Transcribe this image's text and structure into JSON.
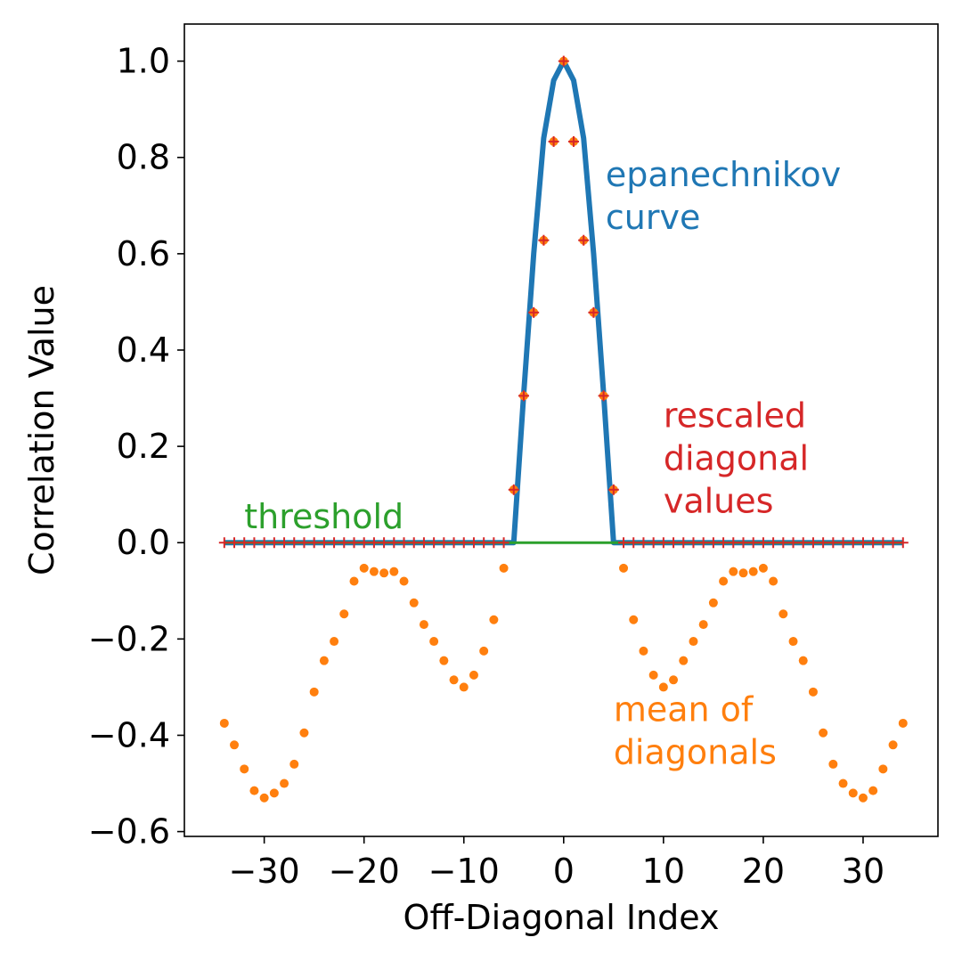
{
  "chart_data": {
    "type": "line",
    "xlabel": "Off-Diagonal Index",
    "ylabel": "Correlation Value",
    "xlim": [
      -38,
      37.5
    ],
    "ylim": [
      -0.61,
      1.077
    ],
    "xticks": [
      -30,
      -20,
      -10,
      0,
      10,
      20,
      30
    ],
    "xtick_labels": [
      "−30",
      "−20",
      "−10",
      "0",
      "10",
      "20",
      "30"
    ],
    "yticks": [
      -0.6,
      -0.4,
      -0.2,
      0.0,
      0.2,
      0.4,
      0.6,
      0.8,
      1.0
    ],
    "ytick_labels": [
      "−0.6",
      "−0.4",
      "−0.2",
      "0.0",
      "0.2",
      "0.4",
      "0.6",
      "0.8",
      "1.0"
    ],
    "grid": false,
    "legend": "none",
    "annotations": [
      {
        "lines": [
          "epanechnikov",
          "curve"
        ],
        "color": "#1f77b4",
        "x": 4.2,
        "y": 0.74
      },
      {
        "lines": [
          "rescaled",
          "diagonal",
          "values"
        ],
        "color": "#d62728",
        "x": 10.0,
        "y": 0.24
      },
      {
        "lines": [
          "threshold"
        ],
        "color": "#2ca02c",
        "x": -32.0,
        "y": 0.03
      },
      {
        "lines": [
          "mean of",
          "diagonals"
        ],
        "color": "#ff7f0e",
        "x": 5.0,
        "y": -0.37
      }
    ],
    "series": [
      {
        "style": "line",
        "color": "#1f77b4",
        "x": [
          -34,
          -33,
          -32,
          -31,
          -30,
          -29,
          -28,
          -27,
          -26,
          -25,
          -24,
          -23,
          -22,
          -21,
          -20,
          -19,
          -18,
          -17,
          -16,
          -15,
          -14,
          -13,
          -12,
          -11,
          -10,
          -9,
          -8,
          -7,
          -6,
          -5,
          -4,
          -3,
          -2,
          -1,
          0,
          1,
          2,
          3,
          4,
          5,
          6,
          7,
          8,
          9,
          10,
          11,
          12,
          13,
          14,
          15,
          16,
          17,
          18,
          19,
          20,
          21,
          22,
          23,
          24,
          25,
          26,
          27,
          28,
          29,
          30,
          31,
          32,
          33,
          34
        ],
        "y": [
          0,
          0,
          0,
          0,
          0,
          0,
          0,
          0,
          0,
          0,
          0,
          0,
          0,
          0,
          0,
          0,
          0,
          0,
          0,
          0,
          0,
          0,
          0,
          0,
          0,
          0,
          0,
          0,
          0,
          0,
          0.31,
          0.6,
          0.84,
          0.96,
          1.0,
          0.96,
          0.84,
          0.6,
          0.31,
          0,
          0,
          0,
          0,
          0,
          0,
          0,
          0,
          0,
          0,
          0,
          0,
          0,
          0,
          0,
          0,
          0,
          0,
          0,
          0,
          0,
          0,
          0,
          0,
          0,
          0,
          0,
          0,
          0,
          0
        ]
      },
      {
        "style": "line",
        "color": "#2ca02c",
        "x": [
          -34,
          34
        ],
        "y": [
          0,
          0
        ]
      },
      {
        "style": "dot",
        "color": "#ff7f0e",
        "x": [
          -34,
          -33,
          -32,
          -31,
          -30,
          -29,
          -28,
          -27,
          -26,
          -25,
          -24,
          -23,
          -22,
          -21,
          -20,
          -19,
          -18,
          -17,
          -16,
          -15,
          -14,
          -13,
          -12,
          -11,
          -10,
          -9,
          -8,
          -7,
          -6,
          -5,
          -4,
          -3,
          -2,
          -1,
          0,
          1,
          2,
          3,
          4,
          5,
          6,
          7,
          8,
          9,
          10,
          11,
          12,
          13,
          14,
          15,
          16,
          17,
          18,
          19,
          20,
          21,
          22,
          23,
          24,
          25,
          26,
          27,
          28,
          29,
          30,
          31,
          32,
          33,
          34
        ],
        "y": [
          -0.375,
          -0.42,
          -0.47,
          -0.515,
          -0.53,
          -0.52,
          -0.5,
          -0.46,
          -0.395,
          -0.31,
          -0.245,
          -0.205,
          -0.148,
          -0.08,
          -0.053,
          -0.06,
          -0.063,
          -0.06,
          -0.08,
          -0.125,
          -0.17,
          -0.205,
          -0.245,
          -0.285,
          -0.3,
          -0.275,
          -0.225,
          -0.16,
          -0.053,
          0.11,
          0.305,
          0.478,
          0.628,
          0.833,
          1.0,
          0.833,
          0.628,
          0.478,
          0.305,
          0.11,
          -0.053,
          -0.16,
          -0.225,
          -0.275,
          -0.3,
          -0.285,
          -0.245,
          -0.205,
          -0.17,
          -0.125,
          -0.08,
          -0.06,
          -0.063,
          -0.06,
          -0.053,
          -0.08,
          -0.148,
          -0.205,
          -0.245,
          -0.31,
          -0.395,
          -0.46,
          -0.5,
          -0.52,
          -0.53,
          -0.515,
          -0.47,
          -0.42,
          -0.375
        ]
      },
      {
        "style": "plus",
        "color": "#d62728",
        "x": [
          -34,
          -33,
          -32,
          -31,
          -30,
          -29,
          -28,
          -27,
          -26,
          -25,
          -24,
          -23,
          -22,
          -21,
          -20,
          -19,
          -18,
          -17,
          -16,
          -15,
          -14,
          -13,
          -12,
          -11,
          -10,
          -9,
          -8,
          -7,
          -6,
          -5,
          -4,
          -3,
          -2,
          -1,
          0,
          1,
          2,
          3,
          4,
          5,
          6,
          7,
          8,
          9,
          10,
          11,
          12,
          13,
          14,
          15,
          16,
          17,
          18,
          19,
          20,
          21,
          22,
          23,
          24,
          25,
          26,
          27,
          28,
          29,
          30,
          31,
          32,
          33,
          34
        ],
        "y": [
          0,
          0,
          0,
          0,
          0,
          0,
          0,
          0,
          0,
          0,
          0,
          0,
          0,
          0,
          0,
          0,
          0,
          0,
          0,
          0,
          0,
          0,
          0,
          0,
          0,
          0,
          0,
          0,
          0,
          0.11,
          0.305,
          0.478,
          0.628,
          0.833,
          1.0,
          0.833,
          0.628,
          0.478,
          0.305,
          0.11,
          0,
          0,
          0,
          0,
          0,
          0,
          0,
          0,
          0,
          0,
          0,
          0,
          0,
          0,
          0,
          0,
          0,
          0,
          0,
          0,
          0,
          0,
          0,
          0,
          0,
          0,
          0,
          0,
          0
        ]
      }
    ]
  }
}
